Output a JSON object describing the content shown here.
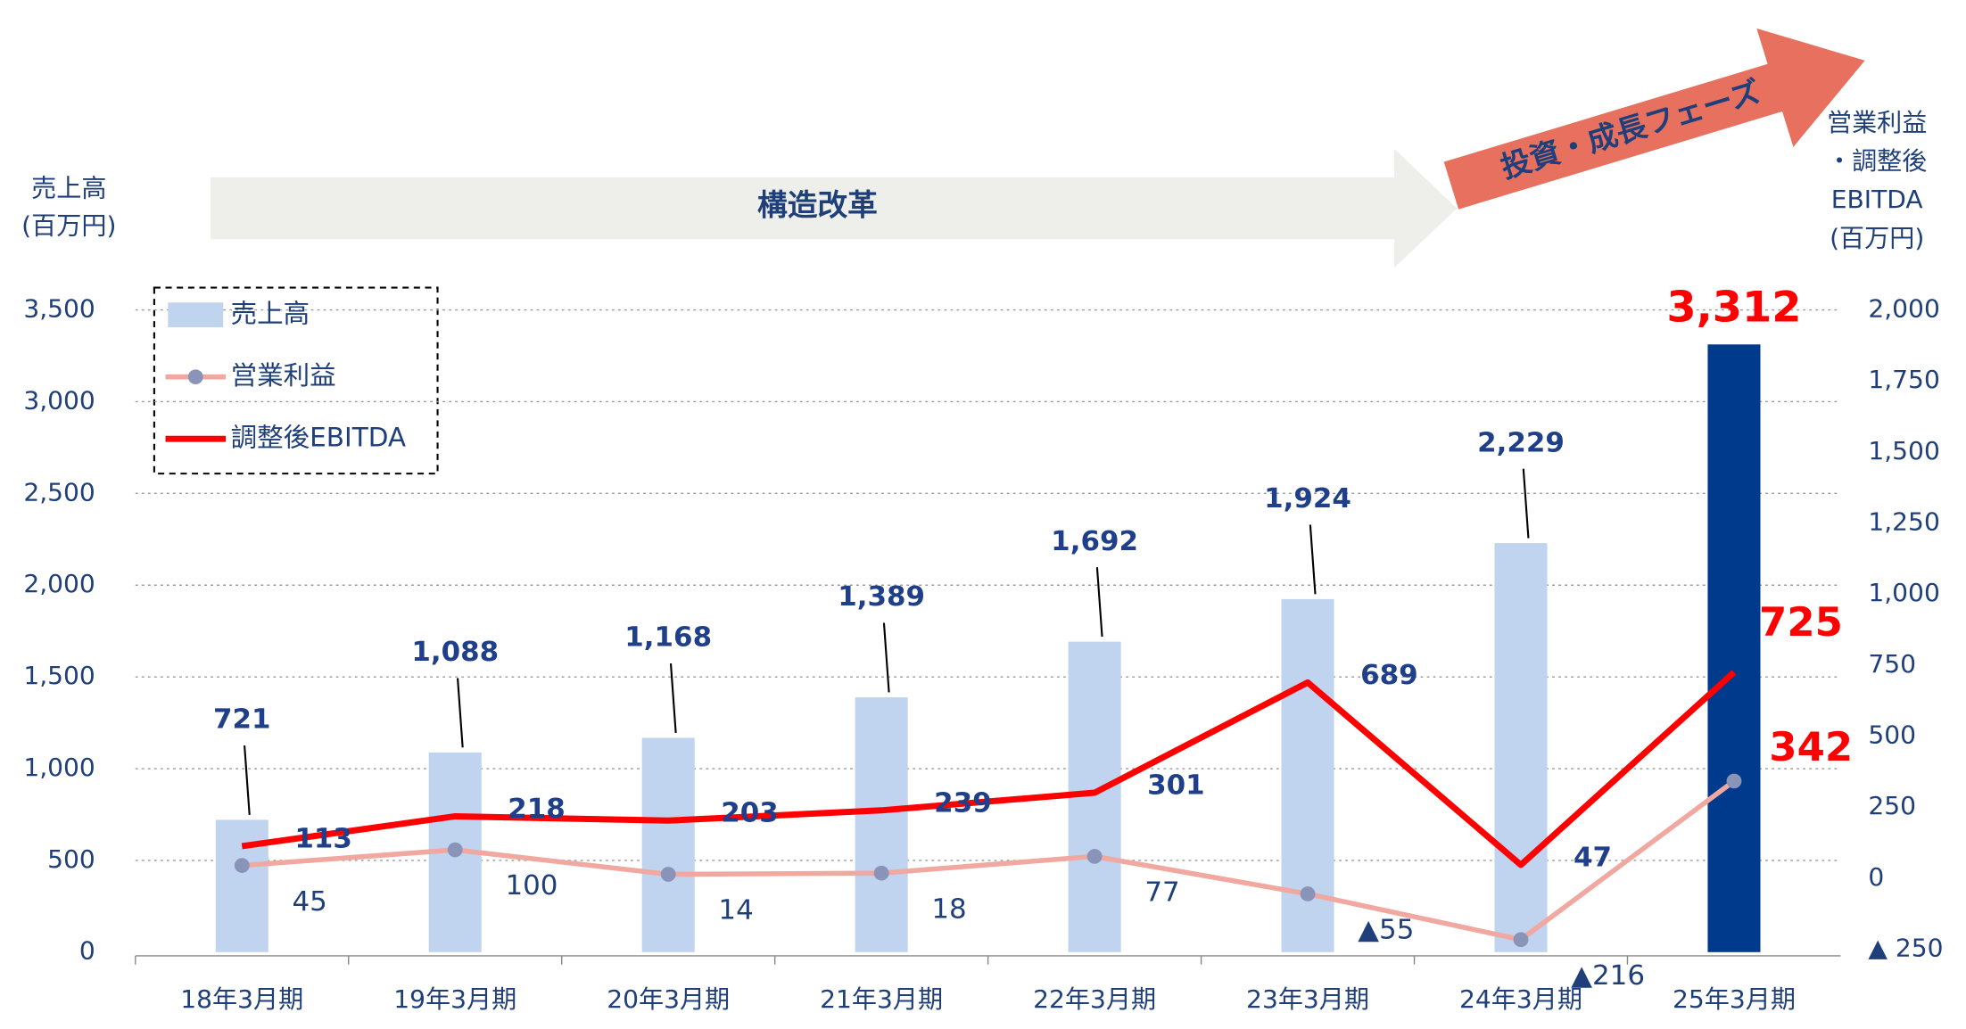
{
  "chart_data": {
    "type": "bar",
    "y_title": [
      "売上高",
      "(百万円)"
    ],
    "y2_title": [
      "営業利益",
      "・調整後",
      "EBITDA",
      "(百万円)"
    ],
    "annotations": [
      "構造改革",
      "投資・成長フェーズ"
    ],
    "categories": [
      "18年3月期",
      "19年3月期",
      "20年3月期",
      "21年3月期",
      "22年3月期",
      "23年3月期",
      "24年3月期",
      "25年3月期"
    ],
    "series": [
      {
        "name": "売上高",
        "type": "bar",
        "colors": [
          "#c0d3ef",
          "#c0d3ef",
          "#c0d3ef",
          "#c0d3ef",
          "#c0d3ef",
          "#c0d3ef",
          "#c0d3ef",
          "#003a8c"
        ],
        "values": [
          721,
          1088,
          1168,
          1389,
          1692,
          1924,
          2229,
          3312
        ],
        "value_labels": [
          "721",
          "1,088",
          "1,168",
          "1,389",
          "1,692",
          "1,924",
          "2,229",
          "3,312"
        ]
      },
      {
        "name": "営業利益",
        "type": "line",
        "axis": "y2",
        "color": "#f0a8a0",
        "marker_color": "#8a93b8",
        "values": [
          45,
          100,
          14,
          18,
          77,
          -55,
          -216,
          342
        ],
        "value_labels": [
          "45",
          "100",
          "14",
          "18",
          "77",
          "▲55",
          "▲216",
          "342"
        ]
      },
      {
        "name": "調整後EBITDA",
        "type": "line",
        "axis": "y2",
        "color": "#ff0000",
        "values": [
          113,
          218,
          203,
          239,
          301,
          689,
          47,
          725
        ]
      }
    ],
    "ylim": [
      0,
      3500
    ],
    "yticks": [
      0,
      500,
      {
        "value": 1000,
        "label": "1,000"
      },
      {
        "value": 1500,
        "label": "1,500"
      },
      {
        "value": 2000,
        "label": "2,000"
      },
      {
        "value": 2500,
        "label": "2,500"
      },
      {
        "value": 3000,
        "label": "3,000"
      },
      {
        "value": 3500,
        "label": "3,500"
      }
    ],
    "y2lim": [
      -260,
      2000
    ],
    "y2ticks": [
      {
        "value": -250,
        "label": "▲ 250"
      },
      0,
      250,
      500,
      750,
      {
        "value": 1000,
        "label": "1,000"
      },
      {
        "value": 1250,
        "label": "1,250"
      },
      {
        "value": 1500,
        "label": "1,500"
      },
      {
        "value": 1750,
        "label": "1,750"
      },
      {
        "value": 2000,
        "label": "2,000"
      }
    ],
    "grid": true
  }
}
